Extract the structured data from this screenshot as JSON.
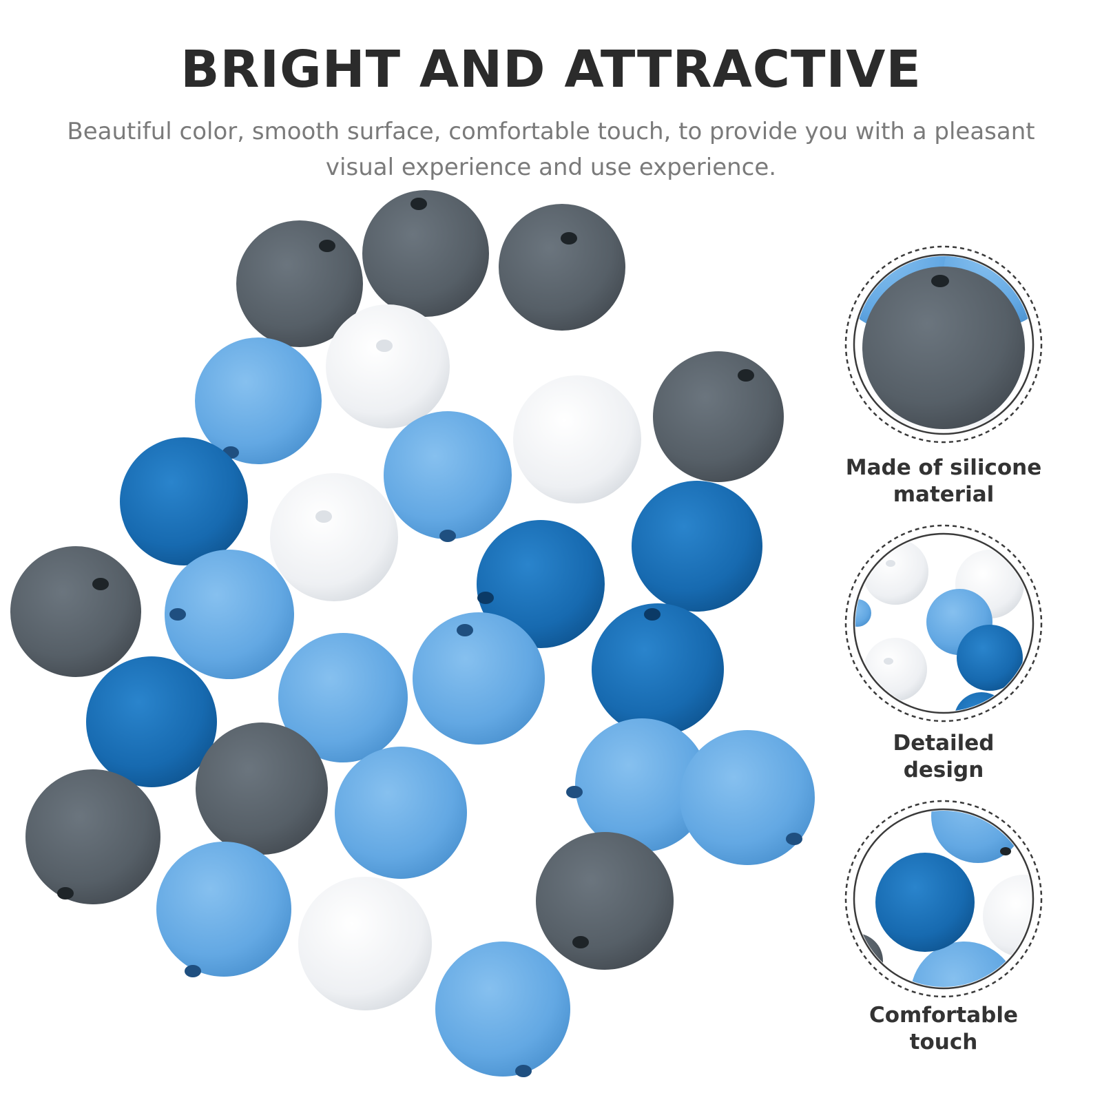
{
  "header": {
    "title": "BRIGHT AND ATTRACTIVE",
    "subtitle": "Beautiful color, smooth surface, comfortable touch, to provide you with a pleasant visual experience and use experience."
  },
  "colors": {
    "gray_bead": "#5a636b",
    "light_blue_bead": "#6aaee6",
    "dark_blue_bead": "#1a6fb6",
    "white_bead": "#f1f2f4",
    "hole": "#1e2428",
    "ring": "#3a3a3a"
  },
  "features": [
    {
      "label": "Made of silicone material",
      "icon": "gray-bead-closeup"
    },
    {
      "label": "Detailed design",
      "icon": "mixed-beads-closeup"
    },
    {
      "label": "Comfortable touch",
      "icon": "blue-beads-closeup"
    }
  ]
}
